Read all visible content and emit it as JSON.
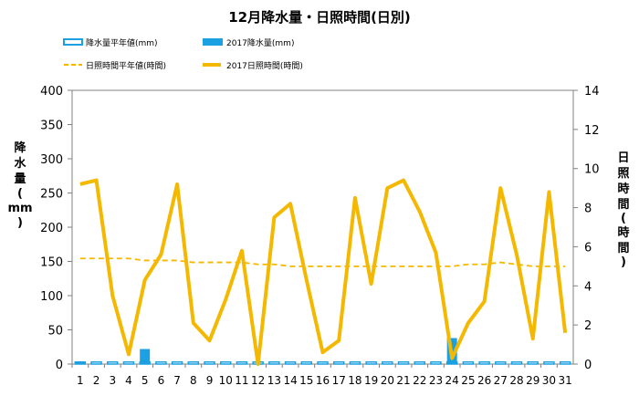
{
  "chart_data": {
    "type": "bar+line",
    "title": "12月降水量・日照時間(日別)",
    "ylabel_left": "降水量(mm)",
    "ylabel_right": "日照時間(時間)",
    "ylim_left": [
      0,
      400
    ],
    "ylim_right": [
      0,
      14
    ],
    "yticks_left": [
      "0",
      "50",
      "100",
      "150",
      "200",
      "250",
      "300",
      "350",
      "400"
    ],
    "yticks_right": [
      "0",
      "2",
      "4",
      "6",
      "8",
      "10",
      "12",
      "14"
    ],
    "grid": false,
    "legend_position": "top",
    "categories": [
      "1",
      "2",
      "3",
      "4",
      "5",
      "6",
      "7",
      "8",
      "9",
      "10",
      "11",
      "12",
      "13",
      "14",
      "15",
      "16",
      "17",
      "18",
      "19",
      "20",
      "21",
      "22",
      "23",
      "24",
      "25",
      "26",
      "27",
      "28",
      "29",
      "30",
      "31"
    ],
    "series": [
      {
        "name": "降水量平年値(mm)",
        "type": "bar",
        "axis": "left",
        "style": "outline",
        "color": "#1ba1e2",
        "values": [
          3,
          3,
          3,
          3,
          3,
          3,
          3,
          3,
          3,
          3,
          3,
          3,
          3,
          3,
          3,
          3,
          3,
          3,
          3,
          3,
          3,
          3,
          3,
          3,
          3,
          3,
          3,
          3,
          3,
          3,
          3
        ]
      },
      {
        "name": "2017降水量(mm)",
        "type": "bar",
        "axis": "left",
        "style": "filled",
        "color": "#1ba1e2",
        "values": [
          4,
          0,
          0,
          0,
          22,
          0,
          0,
          0,
          0,
          0,
          0,
          0,
          0,
          0,
          0,
          0,
          0,
          0,
          0,
          0,
          0,
          0,
          0,
          38,
          0,
          0,
          0,
          0,
          0,
          0,
          0
        ]
      },
      {
        "name": "日照時間平年値(時間)",
        "type": "line",
        "axis": "right",
        "style": "dashed",
        "color": "#f5b800",
        "values": [
          5.4,
          5.4,
          5.4,
          5.4,
          5.3,
          5.3,
          5.3,
          5.2,
          5.2,
          5.2,
          5.2,
          5.1,
          5.1,
          5.0,
          5.0,
          5.0,
          5.0,
          5.0,
          5.0,
          5.0,
          5.0,
          5.0,
          5.0,
          5.0,
          5.1,
          5.1,
          5.2,
          5.1,
          5.0,
          5.0,
          5.0
        ]
      },
      {
        "name": "2017日照時間(時間)",
        "type": "line",
        "axis": "right",
        "style": "solid",
        "color": "#f5b800",
        "values": [
          9.2,
          9.4,
          3.5,
          0.5,
          4.3,
          5.6,
          9.2,
          2.1,
          1.2,
          3.3,
          5.8,
          0.0,
          7.5,
          8.2,
          4.3,
          0.6,
          1.2,
          8.5,
          4.1,
          9.0,
          9.4,
          7.8,
          5.7,
          0.3,
          2.1,
          3.2,
          9.0,
          5.6,
          1.3,
          8.8,
          1.6
        ]
      }
    ]
  }
}
